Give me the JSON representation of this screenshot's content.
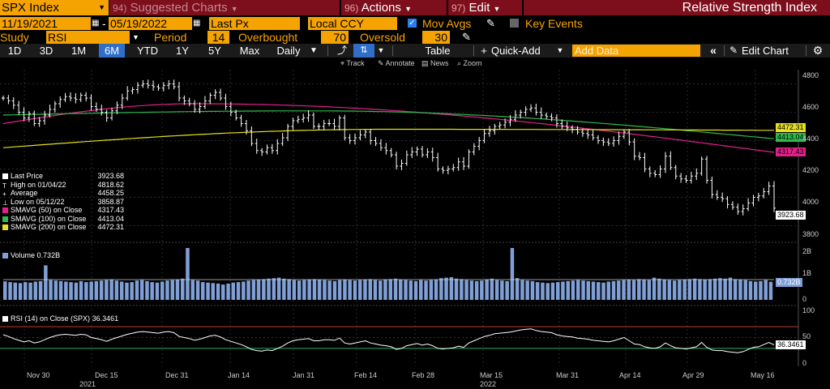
{
  "header": {
    "ticker": "SPX Index",
    "menus": [
      {
        "num": "94)",
        "label": "Suggested Charts",
        "dim": true
      },
      {
        "num": "96)",
        "label": "Actions",
        "dim": false
      },
      {
        "num": "97)",
        "label": "Edit",
        "dim": false
      }
    ],
    "title": "Relative Strength Index"
  },
  "settings": {
    "start_date": "11/19/2021",
    "end_date": "05/19/2022",
    "price_field": "Last Px",
    "currency": "Local CCY",
    "mov_avgs_label": "Mov Avgs",
    "key_events_label": "Key Events",
    "study_label": "Study",
    "study_value": "RSI",
    "period_label": "Period",
    "period_value": "14",
    "overbought_label": "Overbought",
    "overbought_value": "70",
    "oversold_label": "Oversold",
    "oversold_value": "30"
  },
  "toolbar": {
    "ranges": [
      "1D",
      "3D",
      "1M",
      "6M",
      "YTD",
      "1Y",
      "5Y",
      "Max"
    ],
    "selected_range": "6M",
    "frequency": "Daily",
    "table_label": "Table",
    "quick_add_label": "Quick-Add",
    "add_data_placeholder": "Add Data",
    "edit_chart_label": "Edit Chart",
    "sub_tools": [
      "Track",
      "Annotate",
      "News",
      "Zoom"
    ]
  },
  "colors": {
    "price": "#ffffff",
    "sma50": "#e0218a",
    "sma100": "#2fb84b",
    "sma200": "#e6e01e",
    "volume": "#7f9fd6",
    "accent": "#f5a300",
    "menu_bg": "#7d0e1c"
  },
  "chart_data": [
    {
      "type": "line",
      "name": "price",
      "legend": [
        {
          "label": "Last Price",
          "value": "3923.68"
        },
        {
          "label": "High on 01/04/22",
          "value": "4818.62"
        },
        {
          "label": "Average",
          "value": "4458.25"
        },
        {
          "label": "Low on 05/12/22",
          "value": "3858.87"
        },
        {
          "label": "SMAVG (50)  on Close",
          "value": "4317.43"
        },
        {
          "label": "SMAVG (100)  on Close",
          "value": "4413.04"
        },
        {
          "label": "SMAVG (200)  on Close",
          "value": "4472.31"
        }
      ],
      "ylim": [
        3700,
        4900
      ],
      "yticks": [
        3800,
        4000,
        4200,
        4400,
        4600,
        4800
      ],
      "x_labels": [
        "Nov 30",
        "Dec 15",
        "Dec 31",
        "Jan 14",
        "Jan 31",
        "Feb 14",
        "Feb 28",
        "Mar 15",
        "Mar 31",
        "Apr 14",
        "Apr 29",
        "May 16"
      ],
      "year_labels": [
        "2021",
        "2022"
      ],
      "close": [
        4700,
        4680,
        4650,
        4600,
        4560,
        4590,
        4520,
        4540,
        4580,
        4620,
        4660,
        4690,
        4710,
        4700,
        4690,
        4720,
        4700,
        4640,
        4620,
        4600,
        4560,
        4610,
        4650,
        4700,
        4750,
        4760,
        4790,
        4800,
        4790,
        4780,
        4770,
        4790,
        4800,
        4780,
        4700,
        4680,
        4660,
        4620,
        4640,
        4680,
        4720,
        4740,
        4700,
        4640,
        4600,
        4560,
        4520,
        4470,
        4380,
        4330,
        4320,
        4350,
        4330,
        4380,
        4420,
        4500,
        4540,
        4550,
        4560,
        4580,
        4500,
        4500,
        4520,
        4520,
        4500,
        4560,
        4420,
        4400,
        4420,
        4440,
        4460,
        4400,
        4380,
        4350,
        4330,
        4300,
        4220,
        4240,
        4300,
        4320,
        4340,
        4300,
        4320,
        4280,
        4200,
        4190,
        4200,
        4210,
        4250,
        4220,
        4320,
        4360,
        4400,
        4450,
        4470,
        4500,
        4510,
        4530,
        4550,
        4580,
        4600,
        4620,
        4630,
        4600,
        4580,
        4570,
        4560,
        4520,
        4500,
        4490,
        4480,
        4460,
        4450,
        4440,
        4420,
        4400,
        4390,
        4380,
        4400,
        4430,
        4460,
        4390,
        4290,
        4280,
        4200,
        4170,
        4160,
        4200,
        4290,
        4210,
        4150,
        4130,
        4120,
        4150,
        4170,
        4270,
        4120,
        4020,
        4000,
        3990,
        3950,
        3930,
        3900,
        3920,
        3960,
        4000,
        4010,
        4040,
        4080,
        3923.68
      ],
      "series": [
        {
          "name": "SMAVG (50)",
          "last": 4317.43,
          "start": 4520,
          "mid": 4660,
          "midpos": 0.25
        },
        {
          "name": "SMAVG (100)",
          "last": 4413.04,
          "start": 4580,
          "mid": 4610,
          "midpos": 0.4
        },
        {
          "name": "SMAVG (200)",
          "last": 4472.31,
          "start": 4350,
          "mid": 4480,
          "midpos": 0.5
        }
      ],
      "last_labels": {
        "price": "3923.68",
        "sma50": "4317.43",
        "sma100": "4413.04",
        "sma200": "4472.31"
      }
    },
    {
      "type": "bar",
      "name": "volume",
      "legend_label": "Volume",
      "legend_value": "0.732B",
      "ylim": [
        0,
        2.2
      ],
      "yticks": [
        "2B",
        "1B",
        "0"
      ],
      "last_label": "0.732B",
      "values": [
        0.75,
        0.72,
        0.7,
        0.68,
        0.72,
        0.7,
        0.74,
        0.76,
        1.4,
        0.8,
        0.78,
        0.76,
        0.74,
        0.72,
        0.7,
        0.76,
        0.72,
        0.74,
        0.76,
        0.78,
        0.8,
        0.82,
        0.78,
        0.74,
        0.7,
        0.72,
        0.78,
        0.8,
        0.76,
        0.72,
        0.7,
        0.74,
        0.78,
        0.8,
        0.82,
        0.86,
        2.1,
        0.8,
        0.78,
        0.72,
        0.7,
        0.68,
        0.66,
        0.62,
        0.66,
        0.7,
        0.72,
        0.74,
        0.78,
        0.8,
        0.82,
        0.84,
        0.86,
        0.88,
        0.9,
        0.86,
        0.84,
        0.8,
        0.78,
        0.8,
        0.82,
        0.84,
        0.82,
        0.8,
        0.78,
        0.76,
        0.8,
        0.82,
        0.8,
        0.78,
        0.8,
        0.82,
        0.84,
        0.8,
        0.78,
        0.82,
        0.84,
        0.86,
        0.82,
        0.8,
        0.78,
        0.76,
        0.8,
        0.78,
        0.8,
        0.82,
        0.88,
        0.9,
        0.92,
        0.86,
        0.84,
        0.8,
        0.78,
        0.76,
        0.78,
        0.82,
        0.86,
        0.8,
        0.78,
        0.76,
        2.1,
        0.88,
        0.8,
        0.78,
        0.76,
        0.72,
        0.7,
        0.68,
        0.7,
        0.72,
        0.74,
        0.76,
        0.78,
        0.8,
        0.78,
        0.76,
        0.74,
        0.72,
        0.7,
        0.74,
        0.76,
        0.78,
        0.8,
        0.82,
        0.8,
        0.84,
        0.82,
        0.8,
        0.9,
        0.86,
        0.82,
        0.8,
        0.78,
        0.8,
        0.82,
        0.84,
        0.86,
        0.84,
        0.82,
        0.84,
        0.86,
        0.88,
        0.86,
        0.9,
        0.84,
        0.82,
        0.8,
        0.76,
        0.74,
        0.76,
        0.8,
        0.732
      ],
      "ma": 0.82
    },
    {
      "type": "line",
      "name": "rsi",
      "legend_label": "RSI (14)  on Close (SPX)",
      "legend_value": "36.3461",
      "ylim": [
        0,
        100
      ],
      "yticks": [
        0,
        50,
        100
      ],
      "overbought": 70,
      "oversold": 30,
      "last_label": "36.3461",
      "values": [
        55,
        52,
        48,
        45,
        42,
        44,
        40,
        42,
        46,
        50,
        53,
        55,
        56,
        55,
        54,
        56,
        55,
        50,
        48,
        46,
        43,
        47,
        50,
        53,
        56,
        58,
        60,
        61,
        60,
        59,
        58,
        60,
        61,
        59,
        52,
        50,
        48,
        45,
        47,
        50,
        53,
        54,
        51,
        46,
        43,
        40,
        37,
        33,
        28,
        26,
        25,
        27,
        26,
        30,
        34,
        40,
        44,
        46,
        47,
        48,
        44,
        44,
        46,
        46,
        45,
        49,
        40,
        38,
        40,
        42,
        44,
        40,
        38,
        36,
        35,
        33,
        28,
        30,
        35,
        37,
        39,
        36,
        38,
        35,
        30,
        29,
        30,
        31,
        34,
        32,
        40,
        44,
        48,
        52,
        54,
        57,
        58,
        59,
        60,
        62,
        64,
        65,
        66,
        63,
        61,
        60,
        59,
        55,
        53,
        52,
        51,
        49,
        48,
        47,
        45,
        44,
        43,
        42,
        44,
        47,
        50,
        44,
        38,
        37,
        33,
        31,
        30,
        33,
        40,
        35,
        31,
        30,
        29,
        31,
        33,
        41,
        32,
        27,
        26,
        26,
        24,
        23,
        22,
        24,
        28,
        32,
        33,
        37,
        41,
        36.35
      ]
    }
  ]
}
